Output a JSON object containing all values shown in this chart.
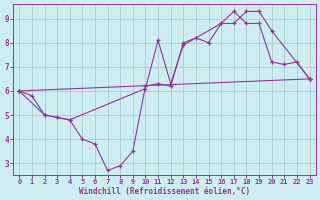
{
  "xlabel": "Windchill (Refroidissement éolien,°C)",
  "bg_color": "#cceef0",
  "grid_color": "#aacccc",
  "line_color": "#993399",
  "xlim": [
    -0.5,
    23.5
  ],
  "ylim": [
    2.5,
    9.6
  ],
  "xticks": [
    0,
    1,
    2,
    3,
    4,
    5,
    6,
    7,
    8,
    9,
    10,
    11,
    12,
    13,
    14,
    15,
    16,
    17,
    18,
    19,
    20,
    21,
    22,
    23
  ],
  "yticks": [
    3,
    4,
    5,
    6,
    7,
    8,
    9
  ],
  "series": [
    [
      [
        0,
        6.0
      ],
      [
        1,
        5.8
      ],
      [
        2,
        5.0
      ],
      [
        3,
        4.9
      ],
      [
        4,
        4.8
      ],
      [
        5,
        4.0
      ],
      [
        6,
        3.8
      ],
      [
        7,
        2.7
      ],
      [
        8,
        2.9
      ],
      [
        9,
        3.5
      ],
      [
        10,
        6.2
      ],
      [
        11,
        6.3
      ],
      [
        12,
        6.2
      ],
      [
        13,
        8.0
      ],
      [
        14,
        8.2
      ],
      [
        15,
        8.0
      ],
      [
        16,
        8.8
      ],
      [
        17,
        9.3
      ],
      [
        18,
        8.8
      ],
      [
        19,
        8.8
      ],
      [
        20,
        7.2
      ],
      [
        21,
        7.1
      ],
      [
        22,
        7.2
      ],
      [
        23,
        6.5
      ]
    ],
    [
      [
        0,
        6.0
      ],
      [
        2,
        5.0
      ],
      [
        3,
        4.9
      ],
      [
        4,
        4.8
      ],
      [
        10,
        6.1
      ],
      [
        11,
        8.1
      ],
      [
        12,
        6.3
      ],
      [
        13,
        7.9
      ],
      [
        16,
        8.8
      ],
      [
        17,
        8.8
      ],
      [
        18,
        9.3
      ],
      [
        19,
        9.3
      ],
      [
        20,
        8.5
      ],
      [
        23,
        6.5
      ]
    ],
    [
      [
        0,
        6.0
      ],
      [
        23,
        6.5
      ]
    ]
  ]
}
